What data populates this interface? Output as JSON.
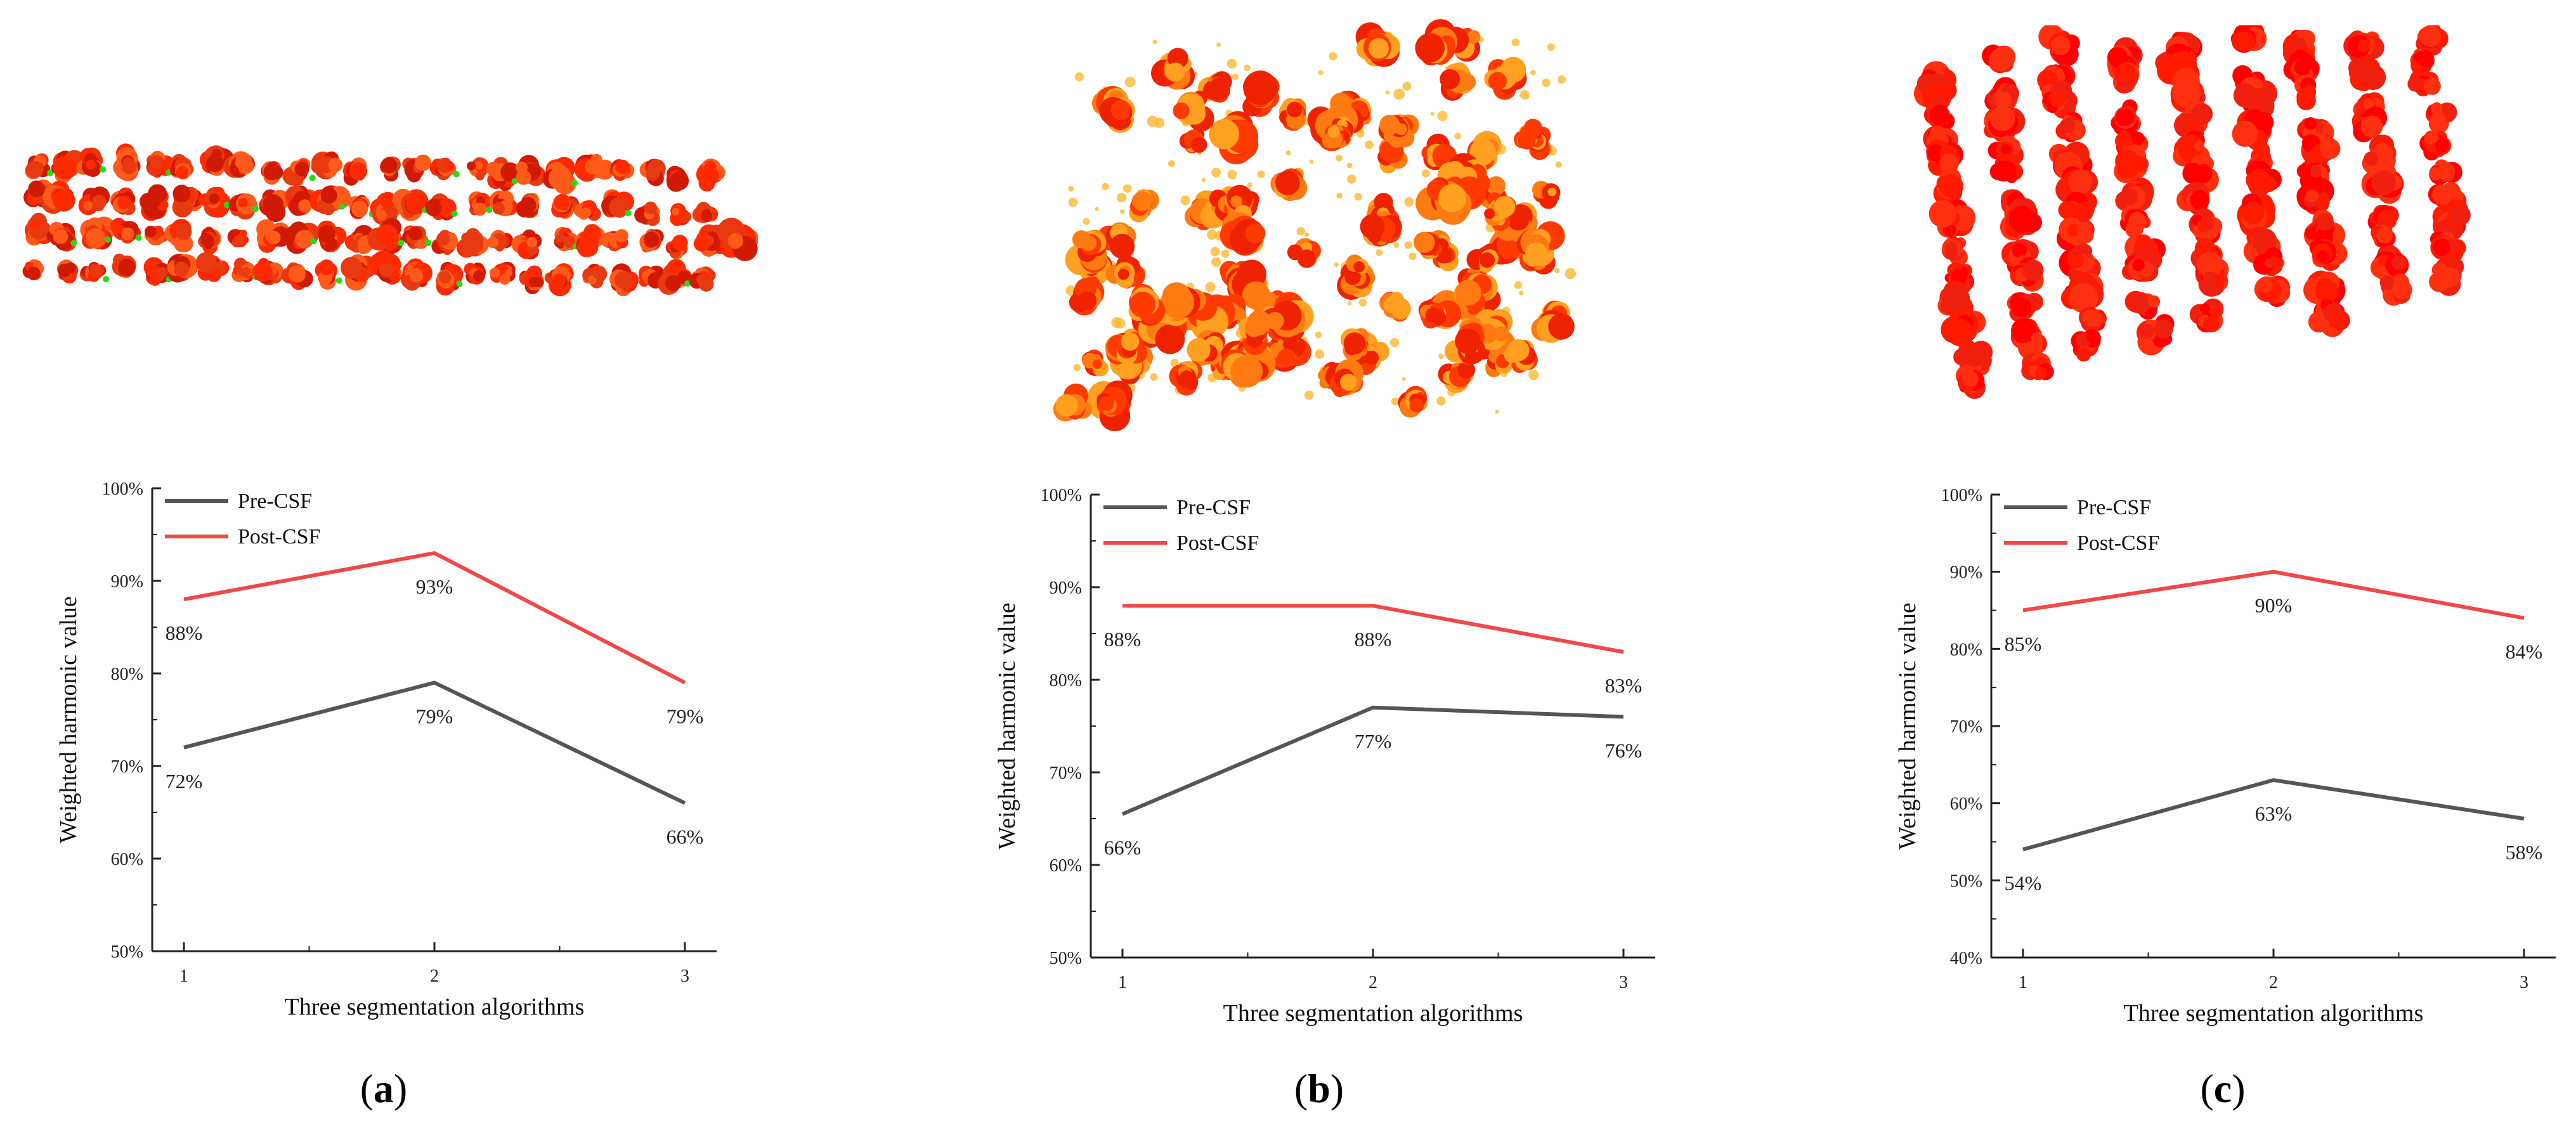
{
  "panels": [
    {
      "label": "a"
    },
    {
      "label": "b"
    },
    {
      "label": "c"
    }
  ],
  "pointclouds": [
    {
      "kind": "strip",
      "colors": [
        "#ff2a00",
        "#e83a10",
        "#ff5a1a",
        "#d01a05"
      ],
      "accent": "#22dd11",
      "seed": 11
    },
    {
      "kind": "scatter",
      "colors": [
        "#ff3a00",
        "#ff7a10",
        "#ffa020",
        "#ee2200"
      ],
      "accent": "#ffb830",
      "seed": 23
    },
    {
      "kind": "fan",
      "colors": [
        "#ff1a00",
        "#ff0000",
        "#f02010",
        "#ff3010"
      ],
      "accent": "#ff0000",
      "seed": 37
    }
  ],
  "chart_data": [
    {
      "type": "line",
      "title": "",
      "xlabel": "Three segmentation algorithms",
      "ylabel": "Weighted harmonic value",
      "categories": [
        1,
        2,
        3
      ],
      "ylim": [
        50,
        100
      ],
      "yticks": [
        50,
        60,
        70,
        80,
        90,
        100
      ],
      "tick_suffix": "%",
      "legend_position": "top-left",
      "series": [
        {
          "name": "Pre-CSF",
          "color": "#555555",
          "values": [
            72,
            79,
            66
          ],
          "labels": [
            "72%",
            "79%",
            "66%"
          ]
        },
        {
          "name": "Post-CSF",
          "color": "#f04848",
          "values": [
            88,
            93,
            79
          ],
          "labels": [
            "88%",
            "93%",
            "79%"
          ]
        }
      ]
    },
    {
      "type": "line",
      "title": "",
      "xlabel": "Three segmentation algorithms",
      "ylabel": "Weighted harmonic value",
      "categories": [
        1,
        2,
        3
      ],
      "ylim": [
        50,
        100
      ],
      "yticks": [
        50,
        60,
        70,
        80,
        90,
        100
      ],
      "tick_suffix": "%",
      "legend_position": "top-left",
      "series": [
        {
          "name": "Pre-CSF",
          "color": "#555555",
          "values": [
            65.5,
            77,
            76
          ],
          "labels": [
            "66%",
            "77%",
            "76%"
          ]
        },
        {
          "name": "Post-CSF",
          "color": "#f04848",
          "values": [
            88,
            88,
            83
          ],
          "labels": [
            "88%",
            "88%",
            "83%"
          ]
        }
      ]
    },
    {
      "type": "line",
      "title": "",
      "xlabel": "Three segmentation algorithms",
      "ylabel": "Weighted harmonic value",
      "categories": [
        1,
        2,
        3
      ],
      "ylim": [
        40,
        100
      ],
      "yticks": [
        40,
        50,
        60,
        70,
        80,
        90,
        100
      ],
      "tick_suffix": "%",
      "legend_position": "top-left",
      "series": [
        {
          "name": "Pre-CSF",
          "color": "#555555",
          "values": [
            54,
            63,
            58
          ],
          "labels": [
            "54%",
            "63%",
            "58%"
          ]
        },
        {
          "name": "Post-CSF",
          "color": "#f04848",
          "values": [
            85,
            90,
            84
          ],
          "labels": [
            "85%",
            "90%",
            "84%"
          ]
        }
      ]
    }
  ]
}
